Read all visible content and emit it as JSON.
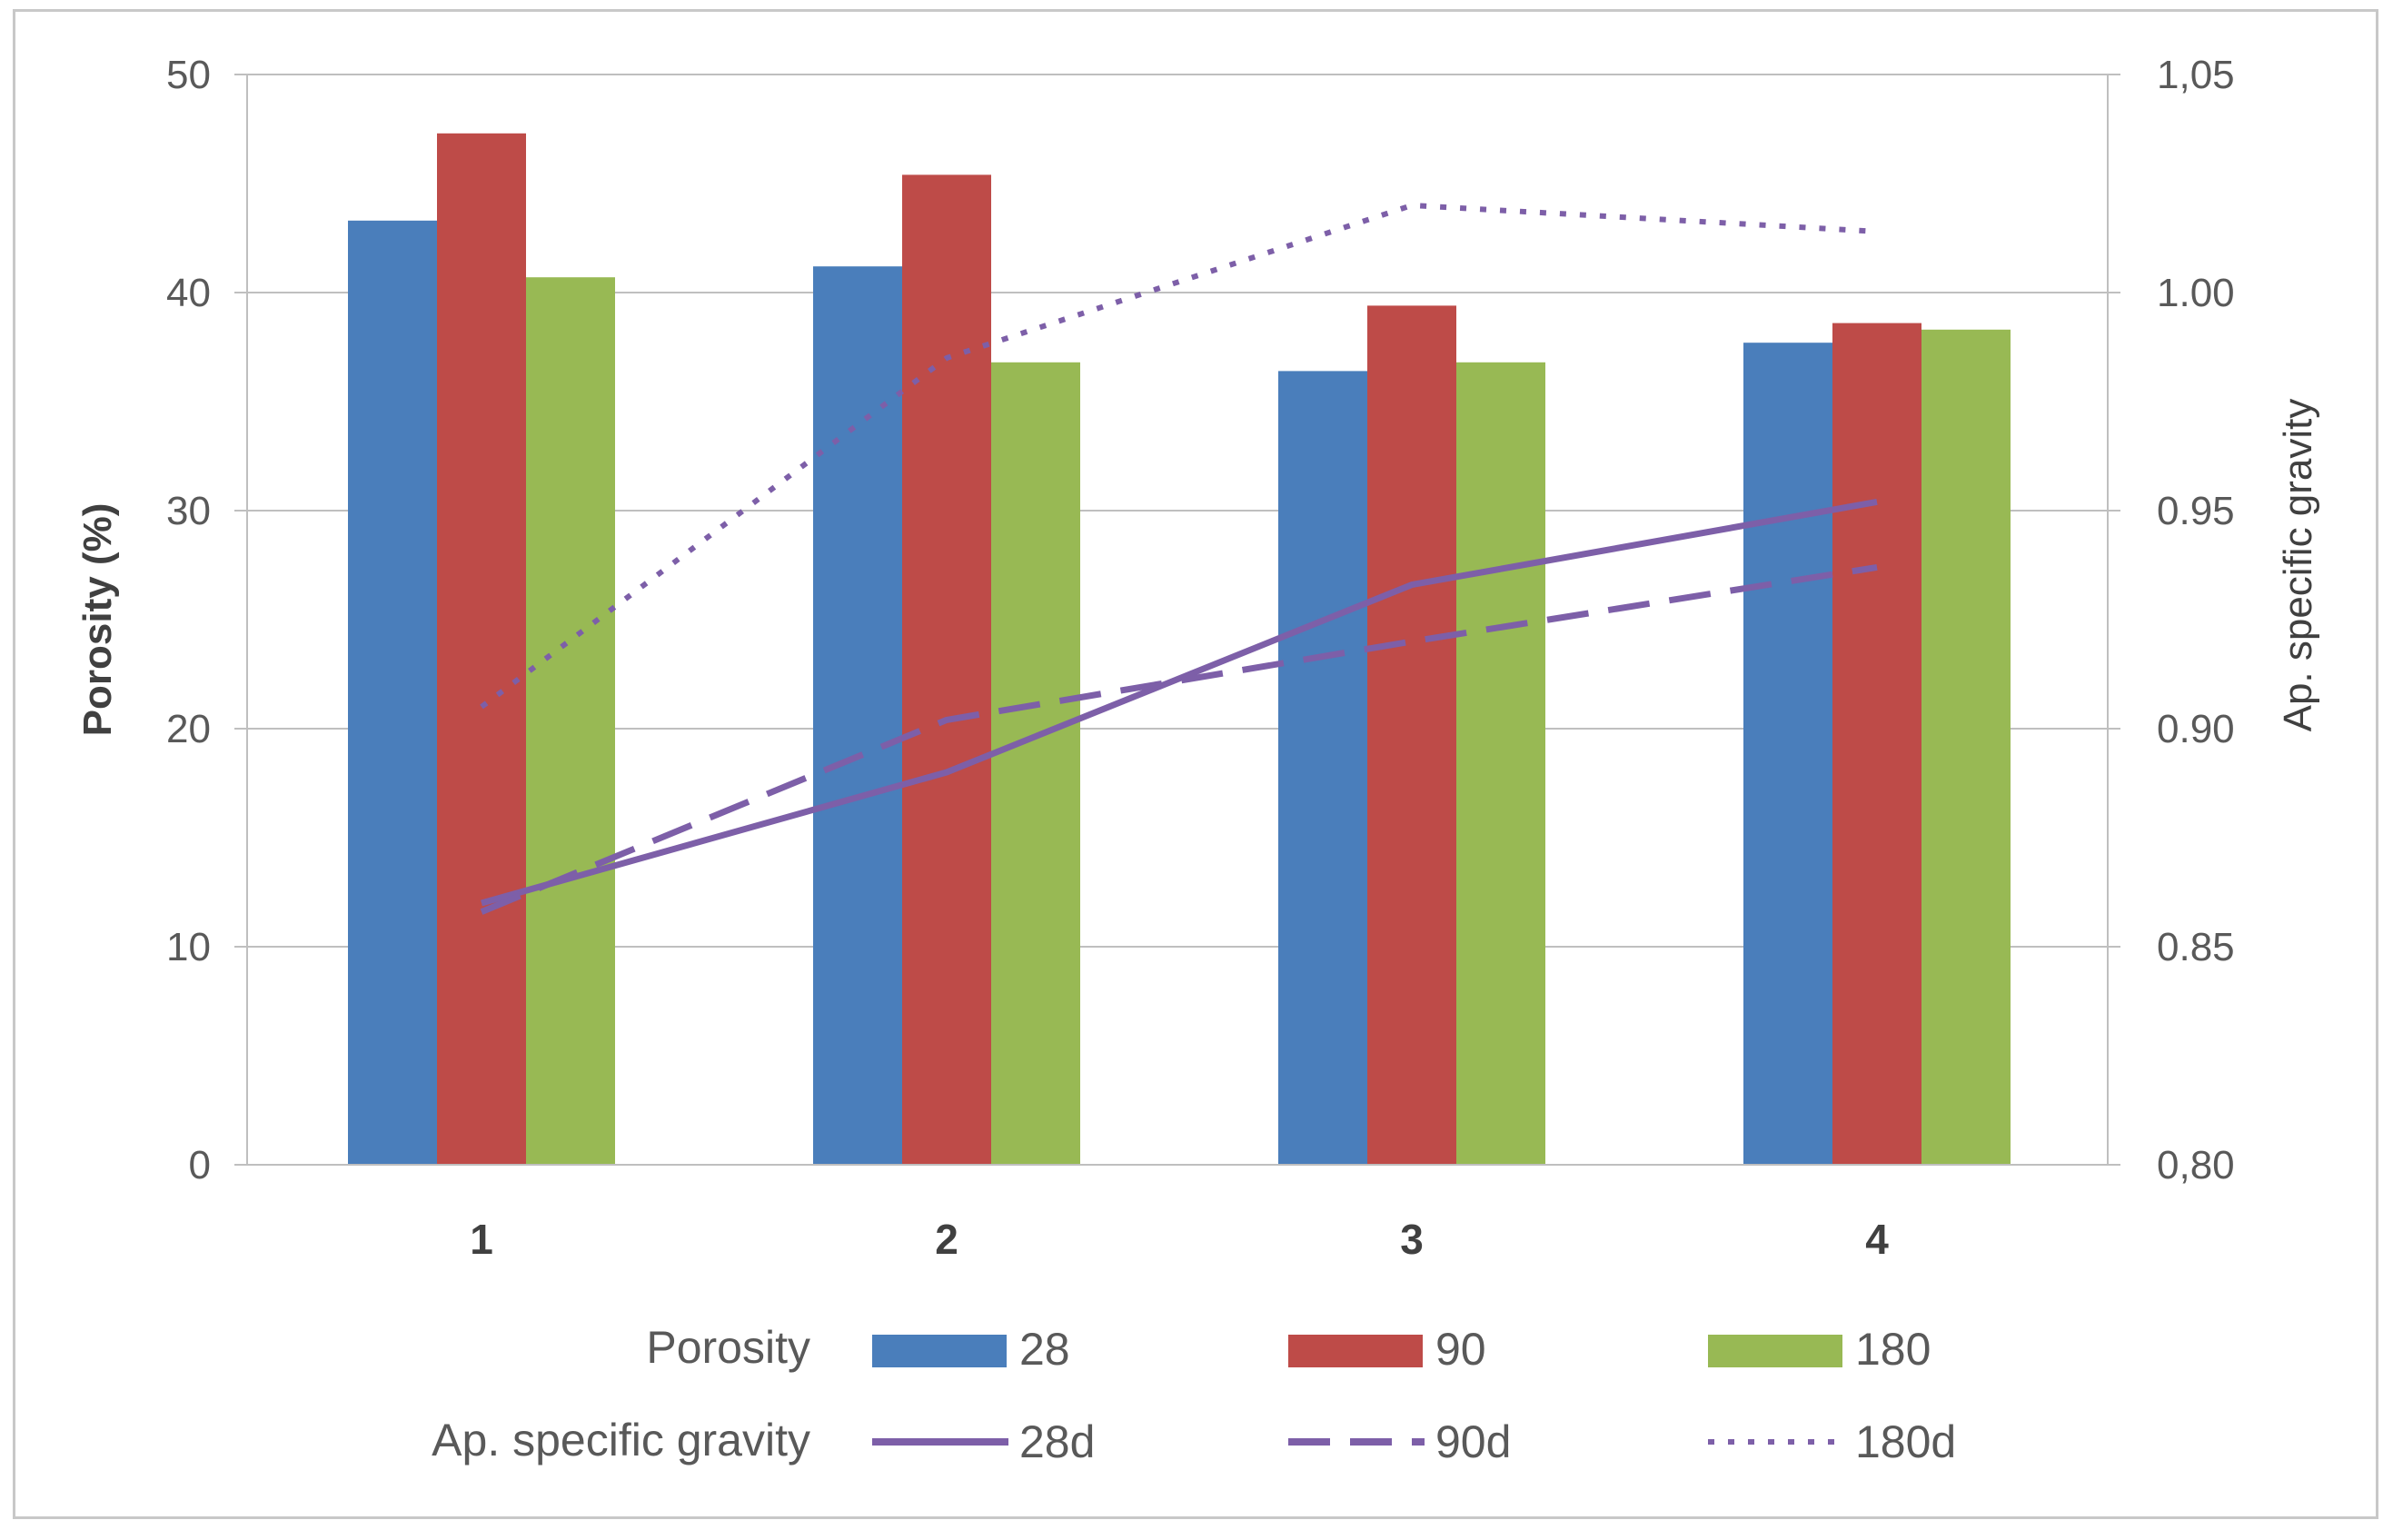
{
  "chart_data": {
    "type": "bar",
    "title": "",
    "categories": [
      "1",
      "2",
      "3",
      "4"
    ],
    "xlabel": "",
    "ylabel": "Porosity (%)",
    "ylim": [
      0,
      50
    ],
    "yticks": [
      0,
      10,
      20,
      30,
      40,
      50
    ],
    "ytick_labels": [
      "0",
      "10",
      "20",
      "30",
      "40",
      "50"
    ],
    "y2label": "Ap. specific gravity",
    "y2lim": [
      0.8,
      1.05
    ],
    "y2ticks": [
      0.8,
      0.85,
      0.9,
      0.95,
      1.0,
      1.05
    ],
    "y2tick_labels": [
      "0,80",
      "0.85",
      "0.90",
      "0.95",
      "1.00",
      "1,05"
    ],
    "grid": true,
    "series": [
      {
        "name": "28",
        "group": "Porosity",
        "type": "bar",
        "axis": "left",
        "color": "#4a7ebb",
        "values": [
          43.3,
          41.2,
          36.4,
          37.7
        ]
      },
      {
        "name": "90",
        "group": "Porosity",
        "type": "bar",
        "axis": "left",
        "color": "#be4b48",
        "values": [
          47.3,
          45.4,
          39.4,
          38.6
        ]
      },
      {
        "name": "180",
        "group": "Porosity",
        "type": "bar",
        "axis": "left",
        "color": "#98b954",
        "values": [
          40.7,
          36.8,
          36.8,
          38.3
        ]
      },
      {
        "name": "28d",
        "group": "Ap. specific gravity",
        "type": "line",
        "style": "solid",
        "axis": "right",
        "color": "#7d5fa8",
        "values": [
          0.86,
          0.89,
          0.933,
          0.952
        ]
      },
      {
        "name": "90d",
        "group": "Ap. specific gravity",
        "type": "line",
        "style": "dashed",
        "axis": "right",
        "color": "#7d5fa8",
        "values": [
          0.858,
          0.902,
          0.92,
          0.937
        ]
      },
      {
        "name": "180d",
        "group": "Ap. specific gravity",
        "type": "line",
        "style": "dotted",
        "axis": "right",
        "color": "#7d5fa8",
        "values": [
          0.905,
          0.985,
          1.02,
          1.014
        ]
      }
    ],
    "legend": {
      "position": "bottom",
      "row1_label": "Porosity",
      "row2_label": "Ap. specific gravity"
    }
  }
}
